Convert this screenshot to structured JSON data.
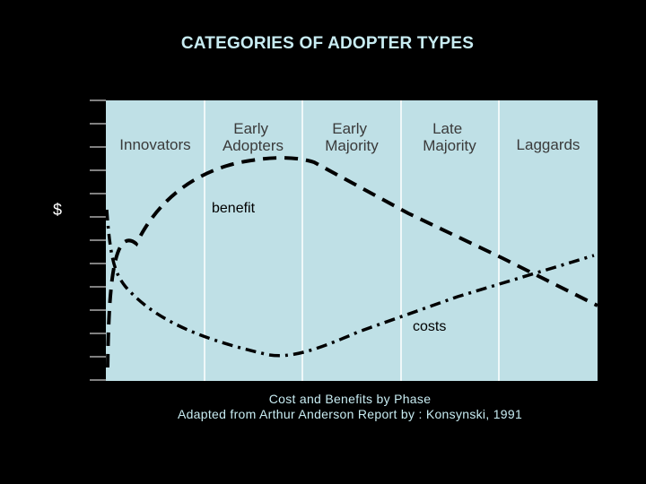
{
  "title": "CATEGORIES OF ADOPTER TYPES",
  "y_axis_label": "$",
  "phases": [
    "Innovators",
    "Early|Adopters",
    "Early|Majority",
    "Late|Majority",
    "Laggards"
  ],
  "curves": {
    "benefit_label": "benefit",
    "costs_label": "costs"
  },
  "caption": {
    "line1": "Cost and Benefits by Phase",
    "line2": "Adapted from Arthur Anderson Report by : Konsynski, 1991"
  },
  "colors": {
    "background": "#000000",
    "panel": "#bfe0e6",
    "title": "#c8ecf2",
    "curve": "#000000"
  }
}
